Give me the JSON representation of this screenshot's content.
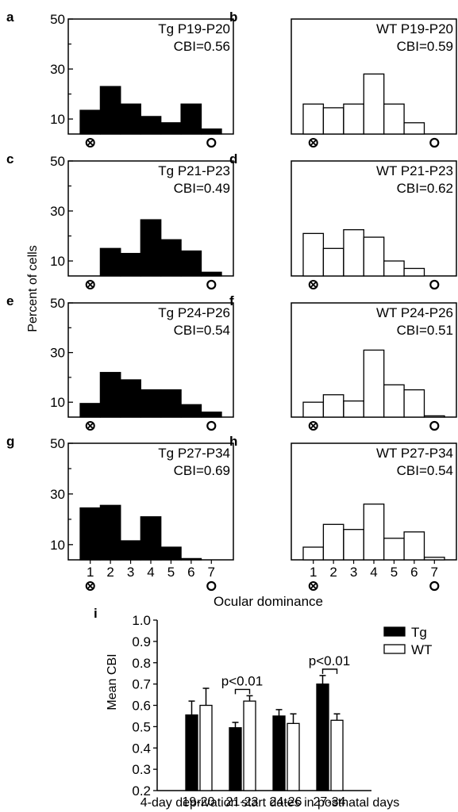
{
  "chart_data": [
    {
      "panel": "a",
      "type": "bar",
      "title_line1": "Tg P19-P20",
      "title_line2": "CBI=0.56",
      "group": "Tg",
      "categories": [
        1,
        2,
        3,
        4,
        5,
        6,
        7
      ],
      "values": [
        13.5,
        23,
        16,
        11,
        8.5,
        16,
        6
      ],
      "yticks": [
        10,
        30,
        50
      ],
      "ylim": [
        0,
        50
      ]
    },
    {
      "panel": "b",
      "type": "bar",
      "title_line1": "WT P19-P20",
      "title_line2": "CBI=0.59",
      "group": "WT",
      "categories": [
        1,
        2,
        3,
        4,
        5,
        6,
        7
      ],
      "values": [
        16,
        14.5,
        16,
        28,
        16,
        8.5,
        1.5
      ],
      "ylim": [
        0,
        50
      ]
    },
    {
      "panel": "c",
      "type": "bar",
      "title_line1": "Tg P21-P23",
      "title_line2": "CBI=0.49",
      "group": "Tg",
      "categories": [
        1,
        2,
        3,
        4,
        5,
        6,
        7
      ],
      "values": [
        4,
        15,
        13,
        26.5,
        18.5,
        14,
        5.5
      ],
      "yticks": [
        10,
        30,
        50
      ],
      "ylim": [
        0,
        50
      ]
    },
    {
      "panel": "d",
      "type": "bar",
      "title_line1": "WT P21-P23",
      "title_line2": "CBI=0.62",
      "group": "WT",
      "categories": [
        1,
        2,
        3,
        4,
        5,
        6,
        7
      ],
      "values": [
        21,
        15,
        22.5,
        19.5,
        10,
        7,
        4
      ],
      "ylim": [
        0,
        50
      ]
    },
    {
      "panel": "e",
      "type": "bar",
      "title_line1": "Tg P24-P26",
      "title_line2": "CBI=0.54",
      "group": "Tg",
      "categories": [
        1,
        2,
        3,
        4,
        5,
        6,
        7
      ],
      "values": [
        9.5,
        22,
        19,
        15,
        15,
        9,
        6
      ],
      "yticks": [
        10,
        30,
        50
      ],
      "ylim": [
        0,
        50
      ]
    },
    {
      "panel": "f",
      "type": "bar",
      "title_line1": "WT P24-P26",
      "title_line2": "CBI=0.51",
      "group": "WT",
      "categories": [
        1,
        2,
        3,
        4,
        5,
        6,
        7
      ],
      "values": [
        10,
        13,
        10.5,
        31,
        17,
        15,
        4.5
      ],
      "ylim": [
        0,
        50
      ]
    },
    {
      "panel": "g",
      "type": "bar",
      "title_line1": "Tg P27-P34",
      "title_line2": "CBI=0.69",
      "group": "Tg",
      "categories": [
        1,
        2,
        3,
        4,
        5,
        6,
        7
      ],
      "values": [
        24.5,
        25.5,
        11.5,
        21,
        9,
        4.5,
        1
      ],
      "yticks": [
        10,
        30,
        50
      ],
      "ylim": [
        0,
        50
      ]
    },
    {
      "panel": "h",
      "type": "bar",
      "title_line1": "WT P27-P34",
      "title_line2": "CBI=0.54",
      "group": "WT",
      "categories": [
        1,
        2,
        3,
        4,
        5,
        6,
        7
      ],
      "values": [
        9,
        18,
        16,
        26,
        12.5,
        15,
        5
      ],
      "ylim": [
        0,
        50
      ]
    }
  ],
  "histogram_axes": {
    "ylabel": "Percent of cells",
    "xlabel": "Ocular dominance",
    "xtick_labels": [
      "1",
      "2",
      "3",
      "4",
      "5",
      "6",
      "7"
    ]
  },
  "summary_chart": {
    "panel": "i",
    "type": "bar",
    "categories": [
      "19-20",
      "21-23",
      "24-26",
      "27-34"
    ],
    "series": [
      {
        "name": "Tg",
        "values": [
          0.555,
          0.495,
          0.55,
          0.7
        ],
        "errors": [
          0.065,
          0.025,
          0.03,
          0.04
        ],
        "color": "#000000"
      },
      {
        "name": "WT",
        "values": [
          0.6,
          0.62,
          0.515,
          0.53
        ],
        "errors": [
          0.08,
          0.025,
          0.045,
          0.03
        ],
        "color": "#ffffff"
      }
    ],
    "ylim": [
      0.2,
      1.0
    ],
    "yticks": [
      "0.2",
      "0.3",
      "0.4",
      "0.5",
      "0.6",
      "0.7",
      "0.8",
      "0.9",
      "1.0"
    ],
    "ylabel": "Mean CBI",
    "xlabel": "4-day deprivation start dates in postnatal days",
    "annotations": [
      {
        "category": "21-23",
        "text": "p<0.01"
      },
      {
        "category": "27-34",
        "text": "p<0.01"
      }
    ]
  }
}
